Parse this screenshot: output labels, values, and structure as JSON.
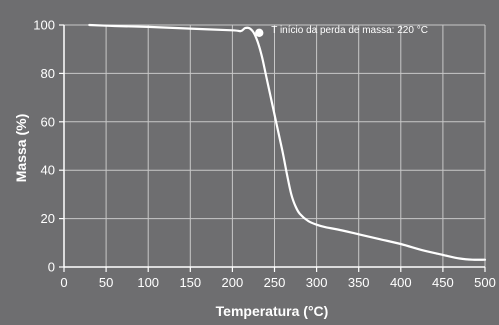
{
  "chart_data": {
    "type": "line",
    "title": "",
    "xlabel": "Temperatura (°C)",
    "ylabel": "Massa (%)",
    "xlim": [
      0,
      500
    ],
    "ylim": [
      0,
      100
    ],
    "x_ticks": [
      0,
      50,
      100,
      150,
      200,
      250,
      300,
      350,
      400,
      450,
      500
    ],
    "y_ticks": [
      0,
      20,
      40,
      60,
      80,
      100
    ],
    "x_tick_labels": [
      "0",
      "50",
      "100",
      "150",
      "200",
      "250",
      "300",
      "350",
      "400",
      "450",
      "500"
    ],
    "y_tick_labels": [
      "0",
      "20",
      "40",
      "60",
      "80",
      "100"
    ],
    "grid": true,
    "series": [
      {
        "x": [
          30,
          60,
          100,
          150,
          200,
          210,
          215,
          220,
          225,
          230,
          235,
          240,
          245,
          250,
          255,
          260,
          265,
          270,
          275,
          280,
          290,
          300,
          310,
          325,
          350,
          375,
          400,
          425,
          450,
          470,
          485,
          500
        ],
        "y": [
          100,
          99.6,
          99.2,
          98.5,
          97.8,
          97.5,
          98.7,
          98.7,
          97,
          93,
          87,
          79,
          71,
          63,
          55,
          47,
          38,
          30,
          25,
          22,
          19,
          17.5,
          16.5,
          15.5,
          13.5,
          11.5,
          9.5,
          7,
          5,
          3.5,
          3,
          3
        ]
      }
    ],
    "annotations": [
      {
        "text": "T início da perda de massa: 220 °C",
        "x": 220,
        "y": 98
      }
    ]
  },
  "colors": {
    "background": "#6e6e70",
    "grid": "#c8c8c8",
    "axis": "#ffffff",
    "line": "#ffffff",
    "text": "#ffffff"
  }
}
